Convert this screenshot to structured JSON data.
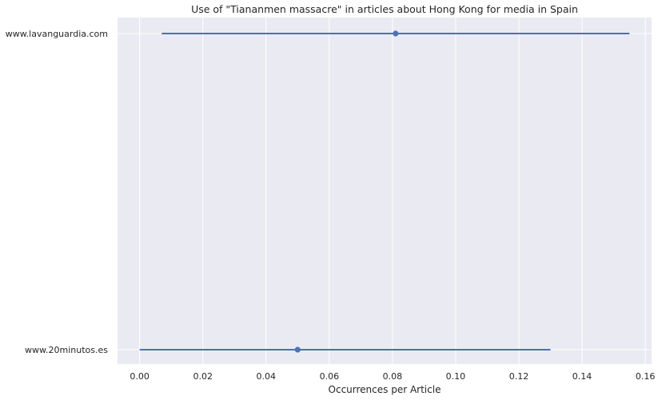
{
  "chart_data": {
    "type": "scatter",
    "title": "Use of \"Tiananmen massacre\" in articles about Hong Kong for media in Spain",
    "xlabel": "Occurrences per Article",
    "ylabel": "",
    "xlim": [
      -0.007,
      0.162
    ],
    "xticks": [
      0.0,
      0.02,
      0.04,
      0.06,
      0.08,
      0.1,
      0.12,
      0.14,
      0.16
    ],
    "xtick_labels": [
      "0.00",
      "0.02",
      "0.04",
      "0.06",
      "0.08",
      "0.10",
      "0.12",
      "0.14",
      "0.16"
    ],
    "grid": true,
    "categories": [
      "www.lavanguardia.com",
      "www.20minutos.es"
    ],
    "points": [
      {
        "category": "www.lavanguardia.com",
        "value": 0.081,
        "lower": 0.007,
        "upper": 0.155
      },
      {
        "category": "www.20minutos.es",
        "value": 0.05,
        "lower": 0.0,
        "upper": 0.13
      }
    ],
    "color": "#4c72b0",
    "background": "#eaeaf2"
  }
}
